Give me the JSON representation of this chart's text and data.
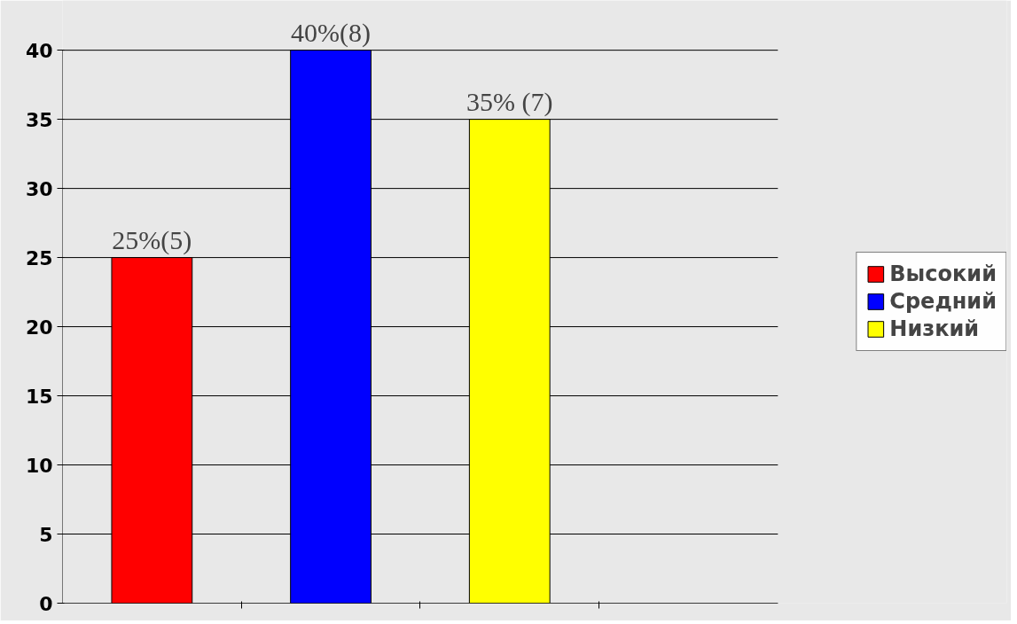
{
  "chart_data": {
    "type": "bar",
    "categories": [
      null
    ],
    "series": [
      {
        "name": "Высокий",
        "color": "#ff0000",
        "values": [
          25
        ],
        "value_labels": [
          "25%(5)"
        ]
      },
      {
        "name": "Средний",
        "color": "#0000ff",
        "values": [
          40
        ],
        "value_labels": [
          "40%(8)"
        ]
      },
      {
        "name": "Низкий",
        "color": "#ffff00",
        "values": [
          35
        ],
        "value_labels": [
          "35% (7)"
        ]
      }
    ],
    "ylim": [
      0,
      40
    ],
    "yticks": [
      0,
      5,
      10,
      15,
      20,
      25,
      30,
      35,
      40
    ],
    "grid": "y",
    "legend": "right",
    "tick_labels": "y"
  }
}
